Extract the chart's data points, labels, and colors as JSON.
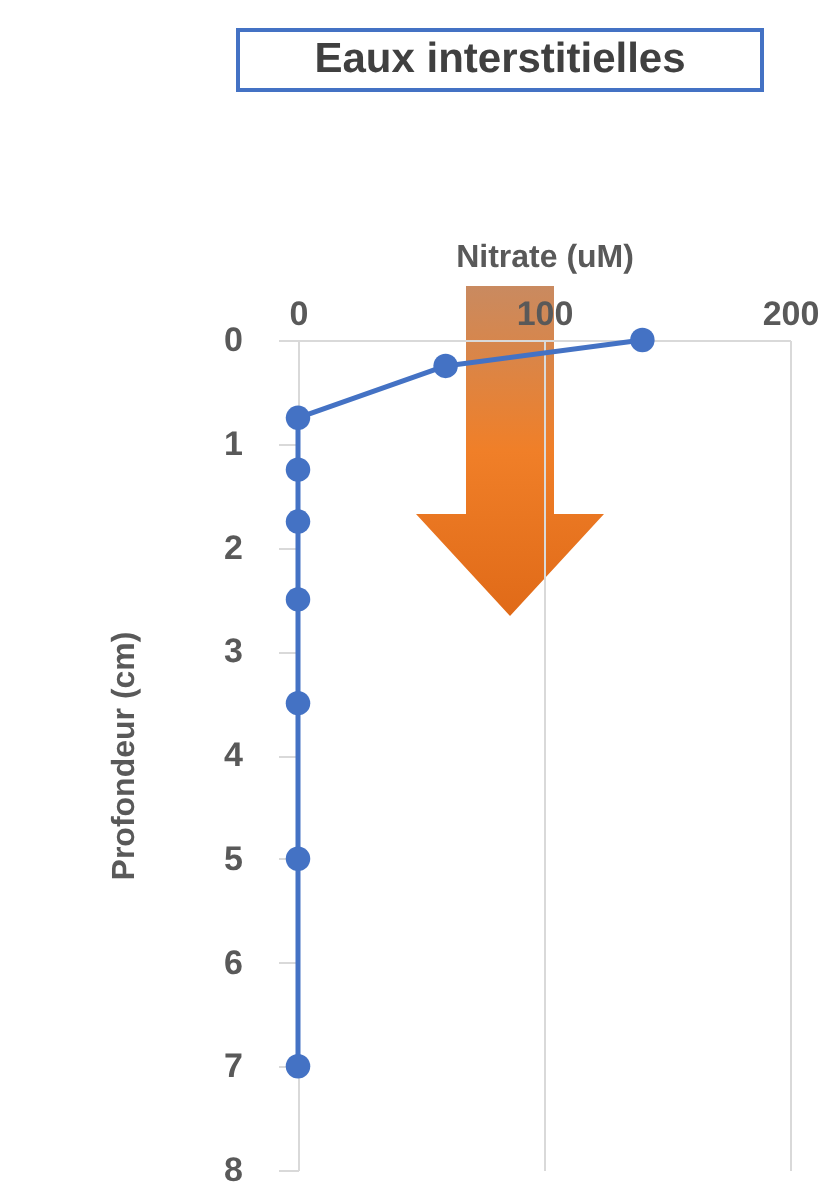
{
  "chart_data": {
    "type": "line",
    "title": "Eaux interstitielles",
    "xlabel": "Nitrate (uM)",
    "ylabel": "Profondeur (cm)",
    "x": [
      140,
      60,
      0,
      0,
      0,
      0,
      0,
      0,
      0
    ],
    "series": [
      {
        "color": "#4472c4",
        "values": [
          0,
          0.25,
          0.75,
          1.25,
          1.75,
          2.5,
          3.5,
          5,
          7
        ]
      }
    ],
    "xlim": [
      0,
      200
    ],
    "xticks": [
      0,
      100,
      200
    ],
    "ylim": [
      8,
      0
    ],
    "yticks": [
      0,
      1,
      2,
      3,
      4,
      5,
      6,
      7,
      8
    ],
    "grid": "x",
    "marker": "circle",
    "line_style": "solid"
  }
}
